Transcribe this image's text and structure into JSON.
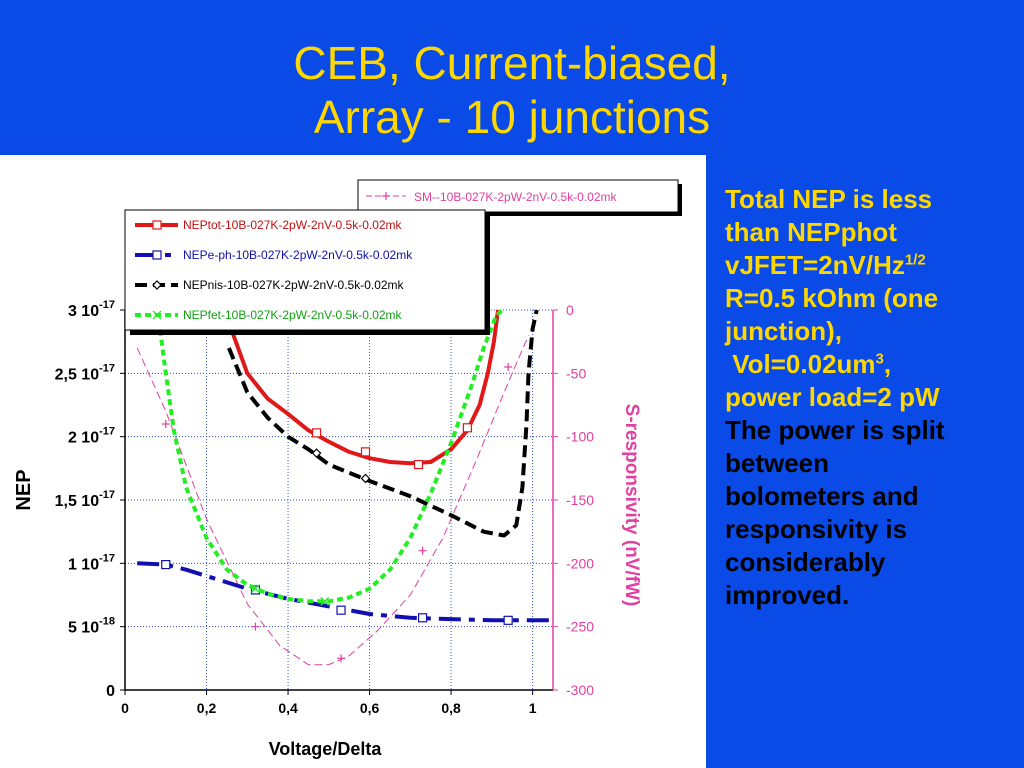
{
  "title": {
    "line1": "CEB, Current-biased,",
    "line2": "Array - 10 junctions"
  },
  "side_text": {
    "l1": "Total NEP is less",
    "l2": "than NEPphot",
    "l3": "vJFET=2nV/Hz",
    "l3_sup": "1/2",
    "l4": "R=0.5 kOhm (one",
    "l5": "junction),",
    "l6": " Vol=0.02um",
    "l6_sup": "3",
    "l6_end": ",",
    "l7": "power load=2 pW",
    "l8": "The power is split",
    "l9": "between",
    "l10": "bolometers and",
    "l11": "responsivity is",
    "l12": "considerably",
    "l13": "improved."
  },
  "colors": {
    "background": "#0a4ae6",
    "title": "#ffd700",
    "highlight_text": "#ffd700",
    "body_text": "#000000"
  },
  "chart_data": {
    "type": "line",
    "xlabel": "Voltage/Delta",
    "ylabel": "NEP",
    "y2label": "S-responsivity (nV/fW)",
    "xlim": [
      0,
      1.05
    ],
    "ylim": [
      0,
      3e-17
    ],
    "y2lim": [
      -300,
      0
    ],
    "grid": true,
    "x_ticks": [
      {
        "value": 0,
        "label": "0"
      },
      {
        "value": 0.2,
        "label": "0,2"
      },
      {
        "value": 0.4,
        "label": "0,4"
      },
      {
        "value": 0.6,
        "label": "0,6"
      },
      {
        "value": 0.8,
        "label": "0,8"
      },
      {
        "value": 1,
        "label": "1"
      }
    ],
    "y_ticks": [
      {
        "value": 0,
        "mant": "0",
        "exp": ""
      },
      {
        "value": 5e-18,
        "mant": "5 10",
        "exp": "-18"
      },
      {
        "value": 1e-17,
        "mant": "1 10",
        "exp": "-17"
      },
      {
        "value": 1.5e-17,
        "mant": "1,5 10",
        "exp": "-17"
      },
      {
        "value": 2e-17,
        "mant": "2 10",
        "exp": "-17"
      },
      {
        "value": 2.5e-17,
        "mant": "2,5 10",
        "exp": "-17"
      },
      {
        "value": 3e-17,
        "mant": "3 10",
        "exp": "-17"
      }
    ],
    "y2_ticks": [
      {
        "value": 0,
        "label": "0"
      },
      {
        "value": -50,
        "label": "-50"
      },
      {
        "value": -100,
        "label": "-100"
      },
      {
        "value": -150,
        "label": "-150"
      },
      {
        "value": -200,
        "label": "-200"
      },
      {
        "value": -250,
        "label": "-250"
      },
      {
        "value": -300,
        "label": "-300"
      }
    ],
    "series": [
      {
        "name": "SM--10B-027K-2pW-2nV-0.5k-0.02mk",
        "axis": "right",
        "color": "#e040a0",
        "width": 1,
        "dash": "8 4",
        "marker": "plus",
        "x": [
          0.03,
          0.1,
          0.2,
          0.3,
          0.38,
          0.45,
          0.5,
          0.55,
          0.62,
          0.7,
          0.78,
          0.86,
          0.93,
          0.99
        ],
        "y": [
          -30,
          -80,
          -165,
          -232,
          -265,
          -280,
          -280,
          -273,
          -253,
          -225,
          -180,
          -120,
          -65,
          -20
        ],
        "marker_x": [
          0.1,
          0.32,
          0.53,
          0.73,
          0.94
        ],
        "marker_y": [
          -90,
          -250,
          -275,
          -190,
          -45
        ]
      },
      {
        "name": "NEPtot-10B-027K-2pW-2nV-0.5k-0.02mk",
        "axis": "left",
        "color": "#e01818",
        "width": 4,
        "dash": "",
        "marker": "square",
        "x": [
          0.255,
          0.3,
          0.35,
          0.4,
          0.45,
          0.5,
          0.55,
          0.6,
          0.65,
          0.7,
          0.75,
          0.8,
          0.84,
          0.87,
          0.89,
          0.905,
          0.915
        ],
        "y": [
          2.9e-17,
          2.5e-17,
          2.3e-17,
          2.18e-17,
          2.05e-17,
          1.96e-17,
          1.88e-17,
          1.83e-17,
          1.8e-17,
          1.79e-17,
          1.8e-17,
          1.9e-17,
          2.05e-17,
          2.25e-17,
          2.5e-17,
          2.75e-17,
          3e-17
        ],
        "marker_x": [
          0.47,
          0.59,
          0.72,
          0.84
        ],
        "marker_y": [
          2.03e-17,
          1.88e-17,
          1.78e-17,
          2.07e-17
        ]
      },
      {
        "name": "NEPe-ph-10B-027K-2pW-2nV-0.5k-0.02mk",
        "axis": "left",
        "color": "#1010b0",
        "width": 4,
        "dash": "22 8 6 8",
        "marker": "square",
        "x": [
          0.03,
          0.1,
          0.15,
          0.2,
          0.3,
          0.4,
          0.5,
          0.6,
          0.7,
          0.8,
          0.9,
          1.0,
          1.05
        ],
        "y": [
          1e-17,
          9.9e-18,
          9.5e-18,
          9e-18,
          8e-18,
          7.2e-18,
          6.6e-18,
          6e-18,
          5.7e-18,
          5.6e-18,
          5.5e-18,
          5.5e-18,
          5.5e-18
        ],
        "marker_x": [
          0.1,
          0.32,
          0.53,
          0.73,
          0.94
        ],
        "marker_y": [
          9.9e-18,
          7.9e-18,
          6.3e-18,
          5.7e-18,
          5.5e-18
        ]
      },
      {
        "name": "NEPnis-10B-027K-2pW-2nV-0.5k-0.02mk",
        "axis": "left",
        "color": "#000000",
        "width": 4,
        "dash": "12 6",
        "marker": "diamond",
        "x": [
          0.255,
          0.3,
          0.35,
          0.4,
          0.45,
          0.5,
          0.6,
          0.7,
          0.8,
          0.88,
          0.93,
          0.96,
          0.975,
          0.985,
          0.99,
          1.0,
          1.01
        ],
        "y": [
          2.7e-17,
          2.35e-17,
          2.15e-17,
          2e-17,
          1.9e-17,
          1.78e-17,
          1.65e-17,
          1.53e-17,
          1.38e-17,
          1.25e-17,
          1.22e-17,
          1.3e-17,
          1.6e-17,
          2.1e-17,
          2.5e-17,
          2.85e-17,
          3e-17
        ],
        "marker_x": [
          0.47,
          0.59
        ],
        "marker_y": [
          1.87e-17,
          1.67e-17
        ]
      },
      {
        "name": "NEPfet-10B-027K-2pW-2nV-0.5k-0.02mk",
        "axis": "left",
        "color": "#22ee22",
        "width": 4,
        "dash": "6 4",
        "marker": "x",
        "x": [
          0.08,
          0.1,
          0.12,
          0.15,
          0.2,
          0.25,
          0.3,
          0.35,
          0.4,
          0.45,
          0.5,
          0.55,
          0.6,
          0.65,
          0.7,
          0.75,
          0.8,
          0.85,
          0.88,
          0.91,
          0.925
        ],
        "y": [
          3e-17,
          2.5e-17,
          2.05e-17,
          1.6e-17,
          1.2e-17,
          9.5e-18,
          8.3e-18,
          7.6e-18,
          7.2e-18,
          7e-18,
          7e-18,
          7.3e-18,
          8e-18,
          9.5e-18,
          1.2e-17,
          1.55e-17,
          1.95e-17,
          2.4e-17,
          2.7e-17,
          2.95e-17,
          3e-17
        ],
        "marker_x": [
          0.32,
          0.49
        ],
        "marker_y": [
          8e-18,
          7e-18
        ]
      }
    ]
  }
}
